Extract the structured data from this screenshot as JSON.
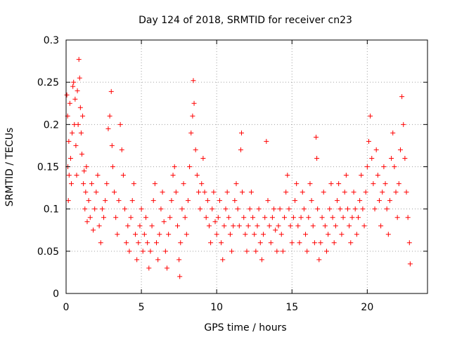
{
  "chart_data": {
    "type": "scatter",
    "title": "Day 124 of 2018, SRMTID for receiver cn23",
    "xlabel": "GPS time / hours",
    "ylabel": "SRMTID / TECUs",
    "xlim": [
      0,
      24.0
    ],
    "ylim": [
      0,
      0.3
    ],
    "x_ticks": [
      0,
      5,
      10,
      15,
      20
    ],
    "x_tick_labels": [
      "0",
      "5",
      "10",
      "15",
      "20"
    ],
    "y_ticks": [
      0,
      0.05,
      0.1,
      0.15,
      0.2,
      0.25,
      0.3
    ],
    "y_tick_labels": [
      "0",
      "0.05",
      "0.1",
      "0.15",
      "0.2",
      "0.25",
      "0.3"
    ],
    "grid": true,
    "marker": "+",
    "color": "#ff0000",
    "series": [
      {
        "name": "SRMTID",
        "points": [
          [
            0.05,
            0.235
          ],
          [
            0.1,
            0.21
          ],
          [
            0.12,
            0.15
          ],
          [
            0.15,
            0.11
          ],
          [
            0.18,
            0.18
          ],
          [
            0.2,
            0.14
          ],
          [
            0.25,
            0.225
          ],
          [
            0.3,
            0.16
          ],
          [
            0.35,
            0.13
          ],
          [
            0.4,
            0.19
          ],
          [
            0.45,
            0.245
          ],
          [
            0.5,
            0.25
          ],
          [
            0.55,
            0.2
          ],
          [
            0.6,
            0.23
          ],
          [
            0.65,
            0.175
          ],
          [
            0.7,
            0.14
          ],
          [
            0.75,
            0.24
          ],
          [
            0.8,
            0.2
          ],
          [
            0.85,
            0.277
          ],
          [
            0.9,
            0.255
          ],
          [
            0.95,
            0.22
          ],
          [
            1.0,
            0.19
          ],
          [
            1.05,
            0.165
          ],
          [
            1.1,
            0.21
          ],
          [
            1.15,
            0.13
          ],
          [
            1.2,
            0.145
          ],
          [
            1.25,
            0.1
          ],
          [
            1.3,
            0.12
          ],
          [
            1.35,
            0.15
          ],
          [
            1.4,
            0.085
          ],
          [
            1.5,
            0.11
          ],
          [
            1.6,
            0.09
          ],
          [
            1.7,
            0.13
          ],
          [
            1.8,
            0.075
          ],
          [
            1.9,
            0.1
          ],
          [
            2.0,
            0.12
          ],
          [
            2.1,
            0.14
          ],
          [
            2.2,
            0.08
          ],
          [
            2.3,
            0.06
          ],
          [
            2.4,
            0.1
          ],
          [
            2.5,
            0.09
          ],
          [
            2.6,
            0.11
          ],
          [
            2.7,
            0.13
          ],
          [
            2.8,
            0.195
          ],
          [
            2.9,
            0.21
          ],
          [
            3.0,
            0.239
          ],
          [
            3.05,
            0.175
          ],
          [
            3.1,
            0.15
          ],
          [
            3.2,
            0.12
          ],
          [
            3.3,
            0.09
          ],
          [
            3.4,
            0.07
          ],
          [
            3.5,
            0.11
          ],
          [
            3.6,
            0.2
          ],
          [
            3.7,
            0.17
          ],
          [
            3.8,
            0.14
          ],
          [
            3.9,
            0.1
          ],
          [
            4.0,
            0.06
          ],
          [
            4.1,
            0.08
          ],
          [
            4.2,
            0.05
          ],
          [
            4.3,
            0.09
          ],
          [
            4.4,
            0.11
          ],
          [
            4.5,
            0.13
          ],
          [
            4.6,
            0.07
          ],
          [
            4.7,
            0.04
          ],
          [
            4.8,
            0.06
          ],
          [
            4.9,
            0.08
          ],
          [
            5.0,
            0.1
          ],
          [
            5.1,
            0.05
          ],
          [
            5.2,
            0.07
          ],
          [
            5.3,
            0.09
          ],
          [
            5.4,
            0.06
          ],
          [
            5.5,
            0.03
          ],
          [
            5.6,
            0.05
          ],
          [
            5.7,
            0.08
          ],
          [
            5.8,
            0.11
          ],
          [
            5.9,
            0.13
          ],
          [
            6.0,
            0.06
          ],
          [
            6.1,
            0.04
          ],
          [
            6.2,
            0.07
          ],
          [
            6.3,
            0.1
          ],
          [
            6.4,
            0.12
          ],
          [
            6.5,
            0.085
          ],
          [
            6.6,
            0.05
          ],
          [
            6.7,
            0.03
          ],
          [
            6.8,
            0.07
          ],
          [
            6.9,
            0.09
          ],
          [
            7.0,
            0.11
          ],
          [
            7.1,
            0.14
          ],
          [
            7.2,
            0.15
          ],
          [
            7.3,
            0.12
          ],
          [
            7.4,
            0.08
          ],
          [
            7.5,
            0.04
          ],
          [
            7.55,
            0.02
          ],
          [
            7.6,
            0.06
          ],
          [
            7.7,
            0.1
          ],
          [
            7.8,
            0.13
          ],
          [
            7.9,
            0.09
          ],
          [
            8.0,
            0.07
          ],
          [
            8.1,
            0.11
          ],
          [
            8.2,
            0.15
          ],
          [
            8.3,
            0.19
          ],
          [
            8.4,
            0.21
          ],
          [
            8.45,
            0.252
          ],
          [
            8.5,
            0.225
          ],
          [
            8.6,
            0.17
          ],
          [
            8.7,
            0.14
          ],
          [
            8.8,
            0.12
          ],
          [
            8.9,
            0.1
          ],
          [
            9.0,
            0.13
          ],
          [
            9.1,
            0.16
          ],
          [
            9.2,
            0.12
          ],
          [
            9.3,
            0.09
          ],
          [
            9.4,
            0.11
          ],
          [
            9.5,
            0.08
          ],
          [
            9.6,
            0.06
          ],
          [
            9.7,
            0.1
          ],
          [
            9.8,
            0.12
          ],
          [
            9.9,
            0.085
          ],
          [
            10.0,
            0.07
          ],
          [
            10.1,
            0.09
          ],
          [
            10.2,
            0.11
          ],
          [
            10.3,
            0.06
          ],
          [
            10.4,
            0.04
          ],
          [
            10.5,
            0.08
          ],
          [
            10.6,
            0.1
          ],
          [
            10.7,
            0.12
          ],
          [
            10.8,
            0.09
          ],
          [
            10.9,
            0.07
          ],
          [
            11.0,
            0.05
          ],
          [
            11.1,
            0.08
          ],
          [
            11.2,
            0.11
          ],
          [
            11.3,
            0.13
          ],
          [
            11.4,
            0.1
          ],
          [
            11.5,
            0.08
          ],
          [
            11.6,
            0.17
          ],
          [
            11.65,
            0.19
          ],
          [
            11.7,
            0.12
          ],
          [
            11.8,
            0.09
          ],
          [
            11.9,
            0.07
          ],
          [
            12.0,
            0.05
          ],
          [
            12.1,
            0.08
          ],
          [
            12.2,
            0.1
          ],
          [
            12.3,
            0.12
          ],
          [
            12.4,
            0.09
          ],
          [
            12.5,
            0.07
          ],
          [
            12.6,
            0.05
          ],
          [
            12.7,
            0.08
          ],
          [
            12.8,
            0.1
          ],
          [
            12.9,
            0.06
          ],
          [
            13.0,
            0.04
          ],
          [
            13.1,
            0.07
          ],
          [
            13.2,
            0.09
          ],
          [
            13.3,
            0.18
          ],
          [
            13.4,
            0.11
          ],
          [
            13.5,
            0.08
          ],
          [
            13.6,
            0.06
          ],
          [
            13.7,
            0.09
          ],
          [
            13.8,
            0.1
          ],
          [
            13.9,
            0.075
          ],
          [
            14.0,
            0.05
          ],
          [
            14.1,
            0.08
          ],
          [
            14.2,
            0.1
          ],
          [
            14.3,
            0.07
          ],
          [
            14.4,
            0.05
          ],
          [
            14.5,
            0.09
          ],
          [
            14.6,
            0.12
          ],
          [
            14.7,
            0.14
          ],
          [
            14.8,
            0.1
          ],
          [
            14.9,
            0.08
          ],
          [
            15.0,
            0.06
          ],
          [
            15.1,
            0.09
          ],
          [
            15.2,
            0.11
          ],
          [
            15.3,
            0.13
          ],
          [
            15.4,
            0.08
          ],
          [
            15.5,
            0.06
          ],
          [
            15.6,
            0.09
          ],
          [
            15.7,
            0.12
          ],
          [
            15.8,
            0.1
          ],
          [
            15.9,
            0.07
          ],
          [
            16.0,
            0.05
          ],
          [
            16.1,
            0.09
          ],
          [
            16.2,
            0.13
          ],
          [
            16.3,
            0.11
          ],
          [
            16.4,
            0.08
          ],
          [
            16.5,
            0.06
          ],
          [
            16.6,
            0.185
          ],
          [
            16.65,
            0.16
          ],
          [
            16.7,
            0.1
          ],
          [
            16.8,
            0.04
          ],
          [
            16.9,
            0.06
          ],
          [
            17.0,
            0.09
          ],
          [
            17.1,
            0.12
          ],
          [
            17.2,
            0.08
          ],
          [
            17.3,
            0.05
          ],
          [
            17.4,
            0.07
          ],
          [
            17.5,
            0.1
          ],
          [
            17.6,
            0.13
          ],
          [
            17.7,
            0.09
          ],
          [
            17.8,
            0.06
          ],
          [
            17.9,
            0.08
          ],
          [
            18.0,
            0.11
          ],
          [
            18.1,
            0.13
          ],
          [
            18.2,
            0.1
          ],
          [
            18.3,
            0.07
          ],
          [
            18.4,
            0.09
          ],
          [
            18.5,
            0.12
          ],
          [
            18.6,
            0.14
          ],
          [
            18.7,
            0.1
          ],
          [
            18.8,
            0.08
          ],
          [
            18.9,
            0.06
          ],
          [
            19.0,
            0.09
          ],
          [
            19.1,
            0.12
          ],
          [
            19.2,
            0.1
          ],
          [
            19.3,
            0.07
          ],
          [
            19.4,
            0.09
          ],
          [
            19.5,
            0.11
          ],
          [
            19.6,
            0.14
          ],
          [
            19.7,
            0.1
          ],
          [
            19.8,
            0.08
          ],
          [
            19.9,
            0.12
          ],
          [
            20.0,
            0.15
          ],
          [
            20.1,
            0.18
          ],
          [
            20.2,
            0.21
          ],
          [
            20.3,
            0.16
          ],
          [
            20.4,
            0.13
          ],
          [
            20.5,
            0.1
          ],
          [
            20.6,
            0.17
          ],
          [
            20.7,
            0.14
          ],
          [
            20.8,
            0.11
          ],
          [
            20.9,
            0.08
          ],
          [
            21.0,
            0.12
          ],
          [
            21.1,
            0.15
          ],
          [
            21.2,
            0.13
          ],
          [
            21.3,
            0.1
          ],
          [
            21.4,
            0.07
          ],
          [
            21.5,
            0.11
          ],
          [
            21.6,
            0.16
          ],
          [
            21.7,
            0.19
          ],
          [
            21.8,
            0.15
          ],
          [
            21.9,
            0.12
          ],
          [
            22.0,
            0.09
          ],
          [
            22.1,
            0.13
          ],
          [
            22.2,
            0.17
          ],
          [
            22.3,
            0.233
          ],
          [
            22.4,
            0.2
          ],
          [
            22.5,
            0.16
          ],
          [
            22.6,
            0.12
          ],
          [
            22.7,
            0.09
          ],
          [
            22.8,
            0.06
          ],
          [
            22.85,
            0.035
          ]
        ]
      }
    ]
  }
}
